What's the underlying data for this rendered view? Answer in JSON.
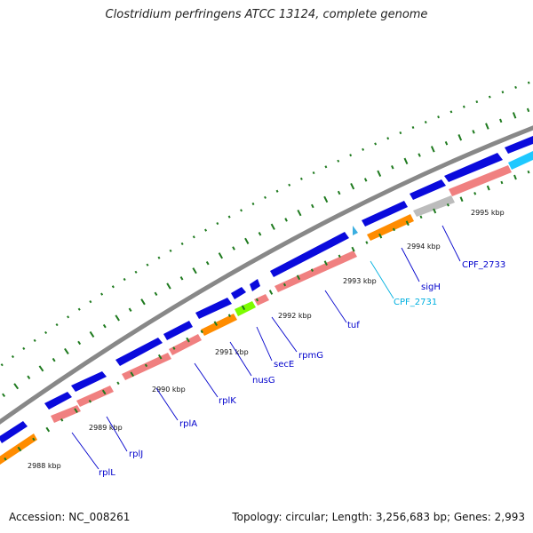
{
  "title": "Clostridium perfringens ATCC 13124, complete genome",
  "footer": {
    "accession": "Accession: NC_008261",
    "stats": "Topology: circular; Length: 3,256,683 bp; Genes: 2,993"
  },
  "colors": {
    "backbone": "#888888",
    "cds_strand": "#0a0adc",
    "cds_label": "#0000cc",
    "rna_label": "#00b0e0",
    "tick": "#1e7a1e"
  },
  "kbp_labels": [
    "2988 kbp",
    "2989 kbp",
    "2990 kbp",
    "2991 kbp",
    "2992 kbp",
    "2993 kbp",
    "2994 kbp",
    "2995 kbp"
  ],
  "genes": [
    {
      "label": "rplL",
      "kind": "cds"
    },
    {
      "label": "rplJ",
      "kind": "cds"
    },
    {
      "label": "rplA",
      "kind": "cds"
    },
    {
      "label": "rplK",
      "kind": "cds"
    },
    {
      "label": "nusG",
      "kind": "cds"
    },
    {
      "label": "secE",
      "kind": "cds"
    },
    {
      "label": "rpmG",
      "kind": "cds"
    },
    {
      "label": "tuf",
      "kind": "cds"
    },
    {
      "label": "CPF_2731",
      "kind": "rna"
    },
    {
      "label": "sigH",
      "kind": "cds"
    },
    {
      "label": "CPF_2733",
      "kind": "cds"
    }
  ]
}
